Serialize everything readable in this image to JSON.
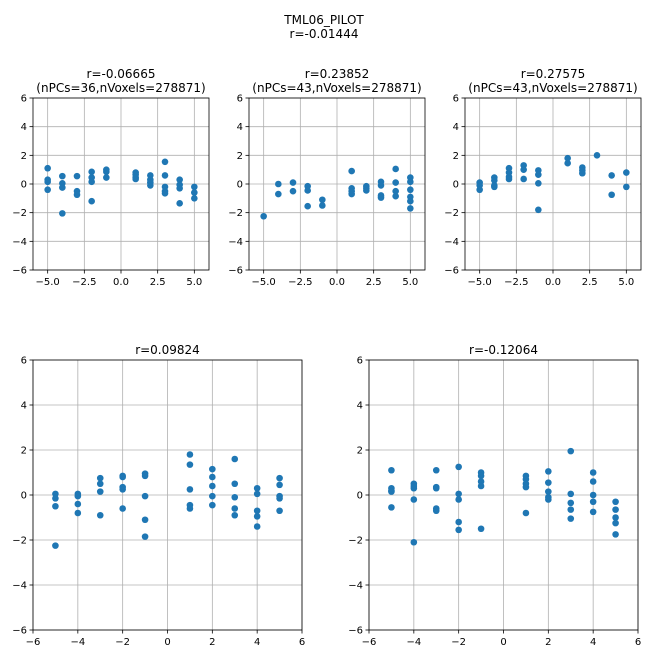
{
  "figure": {
    "title_line1": "TML06_PILOT",
    "title_line2": "r=-0.01444"
  },
  "colors": {
    "marker": "#1f77b4",
    "grid": "#b0b0b0",
    "axis": "#000000"
  },
  "chart_data": [
    {
      "type": "scatter",
      "title": "r=-0.06665\n(nPCs=36,nVoxels=278871)",
      "xlim": [
        -6,
        6
      ],
      "ylim": [
        -6,
        6
      ],
      "xticks": [
        -5.0,
        -2.5,
        0.0,
        2.5,
        5.0
      ],
      "xticklabels": [
        "−5.0",
        "−2.5",
        "0.0",
        "2.5",
        "5.0"
      ],
      "yticks": [
        -6,
        -4,
        -2,
        0,
        2,
        4,
        6
      ],
      "yticklabels": [
        "−6",
        "−4",
        "−2",
        "0",
        "2",
        "4",
        "6"
      ],
      "grid": true,
      "points": [
        [
          -5,
          1.1
        ],
        [
          -5,
          0.3
        ],
        [
          -5,
          0.15
        ],
        [
          -5,
          -0.4
        ],
        [
          -4,
          0.55
        ],
        [
          -4,
          0.05
        ],
        [
          -4,
          -0.25
        ],
        [
          -4,
          -2.05
        ],
        [
          -3,
          0.55
        ],
        [
          -3,
          -0.5
        ],
        [
          -3,
          -0.75
        ],
        [
          -2,
          0.85
        ],
        [
          -2,
          0.45
        ],
        [
          -2,
          0.15
        ],
        [
          -2,
          -1.2
        ],
        [
          -1,
          1.0
        ],
        [
          -1,
          0.85
        ],
        [
          -1,
          0.45
        ],
        [
          1,
          0.8
        ],
        [
          1,
          0.65
        ],
        [
          1,
          0.45
        ],
        [
          1,
          0.35
        ],
        [
          2,
          0.6
        ],
        [
          2,
          0.3
        ],
        [
          2,
          0.1
        ],
        [
          2,
          -0.1
        ],
        [
          3,
          1.55
        ],
        [
          3,
          0.6
        ],
        [
          3,
          -0.2
        ],
        [
          3,
          -0.5
        ],
        [
          3,
          -0.65
        ],
        [
          4,
          0.3
        ],
        [
          4,
          -0.05
        ],
        [
          4,
          -0.3
        ],
        [
          4,
          -1.35
        ],
        [
          5,
          -0.2
        ],
        [
          5,
          -0.6
        ],
        [
          5,
          -1.0
        ]
      ]
    },
    {
      "type": "scatter",
      "title": "r=0.23852\n(nPCs=43,nVoxels=278871)",
      "xlim": [
        -6,
        6
      ],
      "ylim": [
        -6,
        6
      ],
      "xticks": [
        -5.0,
        -2.5,
        0.0,
        2.5,
        5.0
      ],
      "xticklabels": [
        "−5.0",
        "−2.5",
        "0.0",
        "2.5",
        "5.0"
      ],
      "yticks": [
        -6,
        -4,
        -2,
        0,
        2,
        4,
        6
      ],
      "yticklabels": [
        "−6",
        "−4",
        "−2",
        "0",
        "2",
        "4",
        "6"
      ],
      "grid": true,
      "points": [
        [
          -5,
          -2.25
        ],
        [
          -4,
          0.0
        ],
        [
          -4,
          -0.7
        ],
        [
          -3,
          0.1
        ],
        [
          -3,
          -0.5
        ],
        [
          -2,
          -0.15
        ],
        [
          -2,
          -0.45
        ],
        [
          -2,
          -1.55
        ],
        [
          -1,
          -1.1
        ],
        [
          -1,
          -1.5
        ],
        [
          1,
          0.9
        ],
        [
          1,
          -0.3
        ],
        [
          1,
          -0.5
        ],
        [
          1,
          -0.7
        ],
        [
          2,
          -0.15
        ],
        [
          2,
          -0.3
        ],
        [
          2,
          -0.45
        ],
        [
          3,
          0.15
        ],
        [
          3,
          -0.1
        ],
        [
          3,
          -0.8
        ],
        [
          3,
          -0.95
        ],
        [
          4,
          1.05
        ],
        [
          4,
          0.1
        ],
        [
          4,
          -0.5
        ],
        [
          4,
          -0.85
        ],
        [
          5,
          0.45
        ],
        [
          5,
          0.15
        ],
        [
          5,
          -0.4
        ],
        [
          5,
          -0.9
        ],
        [
          5,
          -1.2
        ],
        [
          5,
          -1.7
        ]
      ]
    },
    {
      "type": "scatter",
      "title": "r=0.27575\n(nPCs=43,nVoxels=278871)",
      "xlim": [
        -6,
        6
      ],
      "ylim": [
        -6,
        6
      ],
      "xticks": [
        -5.0,
        -2.5,
        0.0,
        2.5,
        5.0
      ],
      "xticklabels": [
        "−5.0",
        "−2.5",
        "0.0",
        "2.5",
        "5.0"
      ],
      "yticks": [
        -6,
        -4,
        -2,
        0,
        2,
        4,
        6
      ],
      "yticklabels": [
        "−6",
        "−4",
        "−2",
        "0",
        "2",
        "4",
        "6"
      ],
      "grid": true,
      "points": [
        [
          -5,
          0.1
        ],
        [
          -5,
          -0.1
        ],
        [
          -5,
          -0.4
        ],
        [
          -4,
          0.45
        ],
        [
          -4,
          0.25
        ],
        [
          -4,
          -0.1
        ],
        [
          -4,
          -0.2
        ],
        [
          -3,
          1.1
        ],
        [
          -3,
          0.8
        ],
        [
          -3,
          0.5
        ],
        [
          -3,
          0.35
        ],
        [
          -2,
          1.3
        ],
        [
          -2,
          1.0
        ],
        [
          -2,
          0.35
        ],
        [
          -1,
          0.95
        ],
        [
          -1,
          0.65
        ],
        [
          -1,
          0.05
        ],
        [
          -1,
          -1.8
        ],
        [
          1,
          1.8
        ],
        [
          1,
          1.45
        ],
        [
          2,
          1.15
        ],
        [
          2,
          0.95
        ],
        [
          2,
          0.75
        ],
        [
          3,
          2.0
        ],
        [
          4,
          0.6
        ],
        [
          4,
          -0.75
        ],
        [
          5,
          0.8
        ],
        [
          5,
          -0.2
        ]
      ]
    },
    {
      "type": "scatter",
      "title": "r=0.09824",
      "xlim": [
        -6,
        6
      ],
      "ylim": [
        -6,
        6
      ],
      "xticks": [
        -6,
        -4,
        -2,
        0,
        2,
        4,
        6
      ],
      "xticklabels": [
        "−6",
        "−4",
        "−2",
        "0",
        "2",
        "4",
        "6"
      ],
      "yticks": [
        -6,
        -4,
        -2,
        0,
        2,
        4,
        6
      ],
      "yticklabels": [
        "−6",
        "−4",
        "−2",
        "0",
        "2",
        "4",
        "6"
      ],
      "grid": true,
      "points": [
        [
          -5,
          0.05
        ],
        [
          -5,
          -0.15
        ],
        [
          -5,
          -0.5
        ],
        [
          -5,
          -2.25
        ],
        [
          -4,
          0.05
        ],
        [
          -4,
          -0.05
        ],
        [
          -4,
          -0.4
        ],
        [
          -4,
          -0.8
        ],
        [
          -3,
          0.75
        ],
        [
          -3,
          0.5
        ],
        [
          -3,
          0.15
        ],
        [
          -3,
          -0.9
        ],
        [
          -2,
          0.85
        ],
        [
          -2,
          0.8
        ],
        [
          -2,
          0.35
        ],
        [
          -2,
          0.25
        ],
        [
          -2,
          -0.6
        ],
        [
          -1,
          0.95
        ],
        [
          -1,
          0.85
        ],
        [
          -1,
          -0.05
        ],
        [
          -1,
          -1.1
        ],
        [
          -1,
          -1.85
        ],
        [
          1,
          1.8
        ],
        [
          1,
          1.35
        ],
        [
          1,
          0.25
        ],
        [
          1,
          -0.45
        ],
        [
          1,
          -0.6
        ],
        [
          2,
          1.15
        ],
        [
          2,
          0.8
        ],
        [
          2,
          0.4
        ],
        [
          2,
          -0.05
        ],
        [
          2,
          -0.45
        ],
        [
          3,
          1.6
        ],
        [
          3,
          0.5
        ],
        [
          3,
          -0.1
        ],
        [
          3,
          -0.6
        ],
        [
          3,
          -0.9
        ],
        [
          4,
          0.3
        ],
        [
          4,
          0.05
        ],
        [
          4,
          -0.7
        ],
        [
          4,
          -0.95
        ],
        [
          4,
          -1.4
        ],
        [
          5,
          0.75
        ],
        [
          5,
          0.45
        ],
        [
          5,
          -0.05
        ],
        [
          5,
          -0.15
        ],
        [
          5,
          -0.7
        ]
      ]
    },
    {
      "type": "scatter",
      "title": "r=-0.12064",
      "xlim": [
        -6,
        6
      ],
      "ylim": [
        -6,
        6
      ],
      "xticks": [
        -6,
        -4,
        -2,
        0,
        2,
        4,
        6
      ],
      "xticklabels": [
        "−6",
        "−4",
        "−2",
        "0",
        "2",
        "4",
        "6"
      ],
      "yticks": [
        -6,
        -4,
        -2,
        0,
        2,
        4,
        6
      ],
      "yticklabels": [
        "−6",
        "−4",
        "−2",
        "0",
        "2",
        "4",
        "6"
      ],
      "grid": true,
      "points": [
        [
          -5,
          1.1
        ],
        [
          -5,
          0.3
        ],
        [
          -5,
          0.2
        ],
        [
          -5,
          0.15
        ],
        [
          -5,
          -0.55
        ],
        [
          -4,
          0.5
        ],
        [
          -4,
          0.4
        ],
        [
          -4,
          0.3
        ],
        [
          -4,
          -0.2
        ],
        [
          -4,
          -2.1
        ],
        [
          -3,
          1.1
        ],
        [
          -3,
          0.35
        ],
        [
          -3,
          0.3
        ],
        [
          -3,
          -0.6
        ],
        [
          -3,
          -0.7
        ],
        [
          -2,
          1.25
        ],
        [
          -2,
          0.05
        ],
        [
          -2,
          -0.2
        ],
        [
          -2,
          -1.2
        ],
        [
          -2,
          -1.55
        ],
        [
          -1,
          1.0
        ],
        [
          -1,
          0.85
        ],
        [
          -1,
          0.6
        ],
        [
          -1,
          0.4
        ],
        [
          -1,
          -1.5
        ],
        [
          1,
          0.85
        ],
        [
          1,
          0.7
        ],
        [
          1,
          0.5
        ],
        [
          1,
          0.35
        ],
        [
          1,
          -0.8
        ],
        [
          2,
          1.05
        ],
        [
          2,
          0.55
        ],
        [
          2,
          0.15
        ],
        [
          2,
          -0.1
        ],
        [
          2,
          -0.2
        ],
        [
          3,
          1.95
        ],
        [
          3,
          0.05
        ],
        [
          3,
          -0.35
        ],
        [
          3,
          -0.65
        ],
        [
          3,
          -1.05
        ],
        [
          4,
          1.0
        ],
        [
          4,
          0.6
        ],
        [
          4,
          0.0
        ],
        [
          4,
          -0.3
        ],
        [
          4,
          -0.75
        ],
        [
          5,
          -0.3
        ],
        [
          5,
          -0.65
        ],
        [
          5,
          -1.0
        ],
        [
          5,
          -1.25
        ],
        [
          5,
          -1.75
        ]
      ]
    }
  ]
}
